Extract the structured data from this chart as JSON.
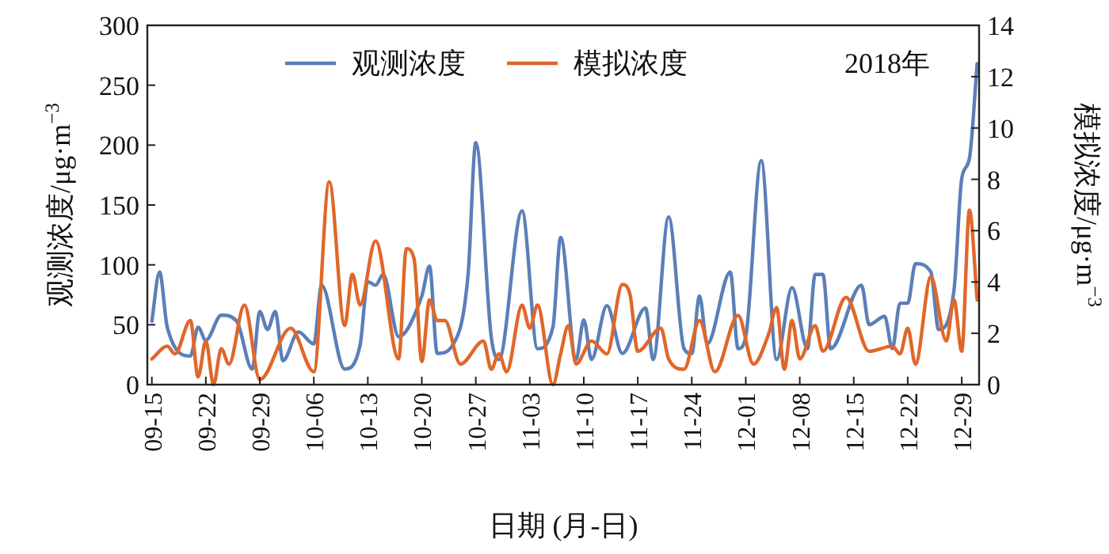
{
  "chart_data": {
    "type": "line",
    "xlabel": "日期 (月-日)",
    "ylabel": "观测浓度/μg·m$^{−3}$",
    "y2label": "模拟浓度/μg·m$^{−3}$",
    "annotations": [
      "2018年"
    ],
    "xlim": [
      "2018-09-14T10:00",
      "2018-12-31T06:00"
    ],
    "xticks": [
      {
        "value": "2018-09-15",
        "label": "09-15"
      },
      {
        "value": "2018-09-22",
        "label": "09-22"
      },
      {
        "value": "2018-09-29",
        "label": "09-29"
      },
      {
        "value": "2018-10-06",
        "label": "10-06"
      },
      {
        "value": "2018-10-13",
        "label": "10-13"
      },
      {
        "value": "2018-10-20",
        "label": "10-20"
      },
      {
        "value": "2018-10-27",
        "label": "10-27"
      },
      {
        "value": "2018-11-03",
        "label": "11-03"
      },
      {
        "value": "2018-11-10",
        "label": "11-10"
      },
      {
        "value": "2018-11-17",
        "label": "11-17"
      },
      {
        "value": "2018-11-24",
        "label": "11-24"
      },
      {
        "value": "2018-12-01",
        "label": "12-01"
      },
      {
        "value": "2018-12-08",
        "label": "12-08"
      },
      {
        "value": "2018-12-15",
        "label": "12-15"
      },
      {
        "value": "2018-12-22",
        "label": "12-22"
      },
      {
        "value": "2018-12-29",
        "label": "12-29"
      }
    ],
    "ylim": [
      0,
      300
    ],
    "yticks": [
      0,
      50,
      100,
      150,
      200,
      250,
      300
    ],
    "y2lim": [
      0,
      14
    ],
    "y2ticks": [
      0,
      2,
      4,
      6,
      8,
      10,
      12,
      14
    ],
    "legend": "top",
    "grid": false,
    "marker": "none",
    "line_style": "solid",
    "series": [
      {
        "name": "观测浓度",
        "color": "#5b7fb8",
        "x": [
          "2018-09-15",
          "2018-09-16",
          "2018-09-17",
          "2018-09-20",
          "2018-09-21",
          "2018-09-22",
          "2018-09-24",
          "2018-09-26",
          "2018-09-28",
          "2018-09-29",
          "2018-09-30",
          "2018-10-01",
          "2018-10-02",
          "2018-10-04",
          "2018-10-06",
          "2018-10-07",
          "2018-10-10",
          "2018-10-12",
          "2018-10-13",
          "2018-10-14",
          "2018-10-15",
          "2018-10-17",
          "2018-10-20",
          "2018-10-21",
          "2018-10-22",
          "2018-10-24",
          "2018-10-26",
          "2018-10-27",
          "2018-10-29",
          "2018-10-30",
          "2018-11-02",
          "2018-11-04",
          "2018-11-06",
          "2018-11-07",
          "2018-11-09",
          "2018-11-10",
          "2018-11-11",
          "2018-11-13",
          "2018-11-15",
          "2018-11-18",
          "2018-11-19",
          "2018-11-21",
          "2018-11-23",
          "2018-11-24",
          "2018-11-25",
          "2018-11-26",
          "2018-11-29",
          "2018-11-30",
          "2018-12-01",
          "2018-12-03",
          "2018-12-05",
          "2018-12-07",
          "2018-12-09",
          "2018-12-10",
          "2018-12-11",
          "2018-12-12",
          "2018-12-16",
          "2018-12-17",
          "2018-12-19",
          "2018-12-20",
          "2018-12-21",
          "2018-12-22",
          "2018-12-23",
          "2018-12-25",
          "2018-12-26",
          "2018-12-28",
          "2018-12-29",
          "2018-12-30",
          "2018-12-31"
        ],
        "values": [
          53,
          94,
          48,
          24,
          48,
          37,
          58,
          53,
          13,
          61,
          46,
          61,
          20,
          44,
          34,
          83,
          13,
          33,
          86,
          83,
          92,
          40,
          74,
          99,
          26,
          33,
          92,
          202,
          40,
          21,
          145,
          30,
          48,
          123,
          21,
          54,
          21,
          66,
          26,
          64,
          21,
          140,
          30,
          26,
          74,
          34,
          94,
          30,
          40,
          187,
          21,
          81,
          30,
          92,
          92,
          30,
          83,
          50,
          57,
          30,
          68,
          68,
          101,
          94,
          46,
          79,
          172,
          189,
          268
        ]
      },
      {
        "name": "模拟浓度",
        "color": "#e0672a",
        "axis": "y2",
        "x": [
          "2018-09-15",
          "2018-09-17",
          "2018-09-18",
          "2018-09-20",
          "2018-09-21",
          "2018-09-22",
          "2018-09-23",
          "2018-09-24",
          "2018-09-25",
          "2018-09-27",
          "2018-09-29",
          "2018-10-03",
          "2018-10-06",
          "2018-10-08",
          "2018-10-10",
          "2018-10-11",
          "2018-10-12",
          "2018-10-14",
          "2018-10-17",
          "2018-10-18",
          "2018-10-19",
          "2018-10-20",
          "2018-10-21",
          "2018-10-22",
          "2018-10-23",
          "2018-10-25",
          "2018-10-28",
          "2018-10-29",
          "2018-10-30",
          "2018-10-31",
          "2018-11-02",
          "2018-11-03",
          "2018-11-04",
          "2018-11-06",
          "2018-11-07",
          "2018-11-08",
          "2018-11-09",
          "2018-11-11",
          "2018-11-13",
          "2018-11-15",
          "2018-11-16",
          "2018-11-17",
          "2018-11-20",
          "2018-11-21",
          "2018-11-23",
          "2018-11-25",
          "2018-11-27",
          "2018-11-30",
          "2018-12-02",
          "2018-12-04",
          "2018-12-05",
          "2018-12-06",
          "2018-12-07",
          "2018-12-08",
          "2018-12-10",
          "2018-12-11",
          "2018-12-14",
          "2018-12-17",
          "2018-12-20",
          "2018-12-21",
          "2018-12-22",
          "2018-12-23",
          "2018-12-25",
          "2018-12-27",
          "2018-12-28",
          "2018-12-29",
          "2018-12-30",
          "2018-12-31"
        ],
        "values": [
          1.0,
          1.5,
          1.2,
          2.5,
          0.3,
          1.7,
          0,
          1.4,
          0.8,
          3.1,
          0.2,
          2.2,
          0.5,
          7.9,
          2.3,
          4.3,
          3.1,
          5.6,
          1.0,
          5.3,
          4.9,
          0.9,
          3.3,
          2.5,
          2.5,
          0.8,
          1.7,
          0.6,
          1.2,
          0.5,
          3.1,
          2.2,
          3.1,
          0,
          1.2,
          2.3,
          0.8,
          1.7,
          1.2,
          3.9,
          3.5,
          1.3,
          2.2,
          1.0,
          0.6,
          2.5,
          0.5,
          2.7,
          0.8,
          2.0,
          3.0,
          0.6,
          2.5,
          1.0,
          2.3,
          1.3,
          3.4,
          1.3,
          1.5,
          1.2,
          2.2,
          0.8,
          4.2,
          1.7,
          3.3,
          1.3,
          6.8,
          3.3
        ]
      }
    ]
  }
}
